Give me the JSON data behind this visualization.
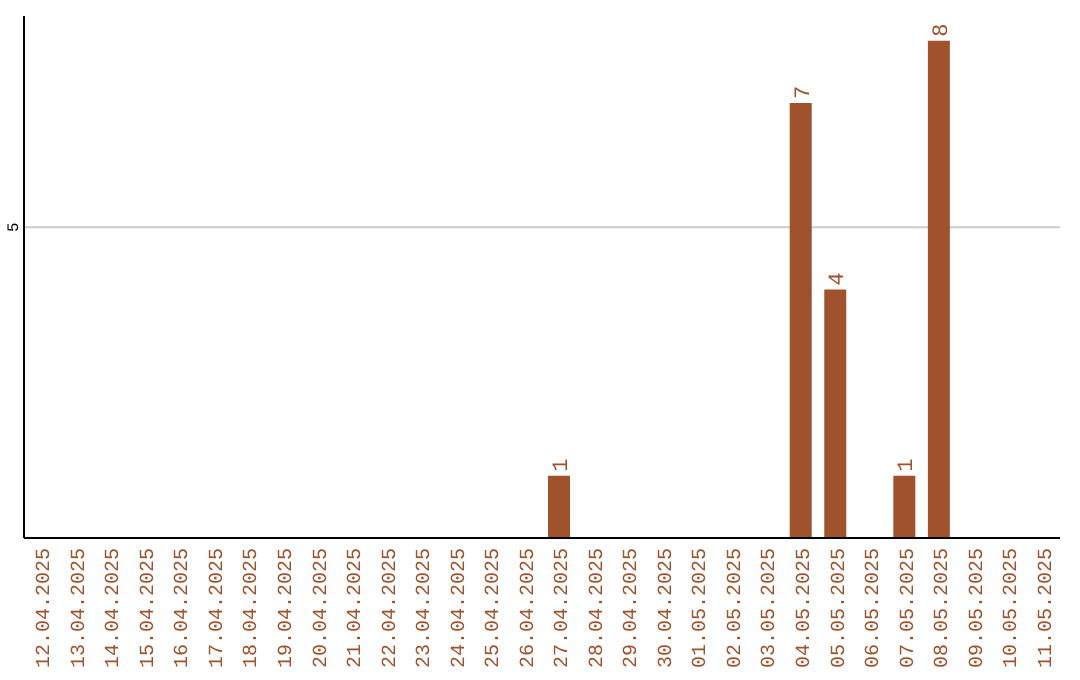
{
  "chart_data": {
    "type": "bar",
    "categories": [
      "12.04.2025",
      "13.04.2025",
      "14.04.2025",
      "15.04.2025",
      "16.04.2025",
      "17.04.2025",
      "18.04.2025",
      "19.04.2025",
      "20.04.2025",
      "21.04.2025",
      "22.04.2025",
      "23.04.2025",
      "24.04.2025",
      "25.04.2025",
      "26.04.2025",
      "27.04.2025",
      "28.04.2025",
      "29.04.2025",
      "30.04.2025",
      "01.05.2025",
      "02.05.2025",
      "03.05.2025",
      "04.05.2025",
      "05.05.2025",
      "06.05.2025",
      "07.05.2025",
      "08.05.2025",
      "09.05.2025",
      "10.05.2025",
      "11.05.2025"
    ],
    "values": [
      null,
      null,
      null,
      null,
      null,
      null,
      null,
      null,
      null,
      null,
      null,
      null,
      null,
      null,
      null,
      1,
      null,
      null,
      null,
      null,
      null,
      null,
      7,
      4,
      null,
      1,
      8,
      null,
      null,
      null
    ],
    "color": "#a0522d",
    "ylim": [
      0,
      8.4
    ],
    "yticks": [
      5
    ],
    "grid": "y",
    "data_labels": true
  }
}
